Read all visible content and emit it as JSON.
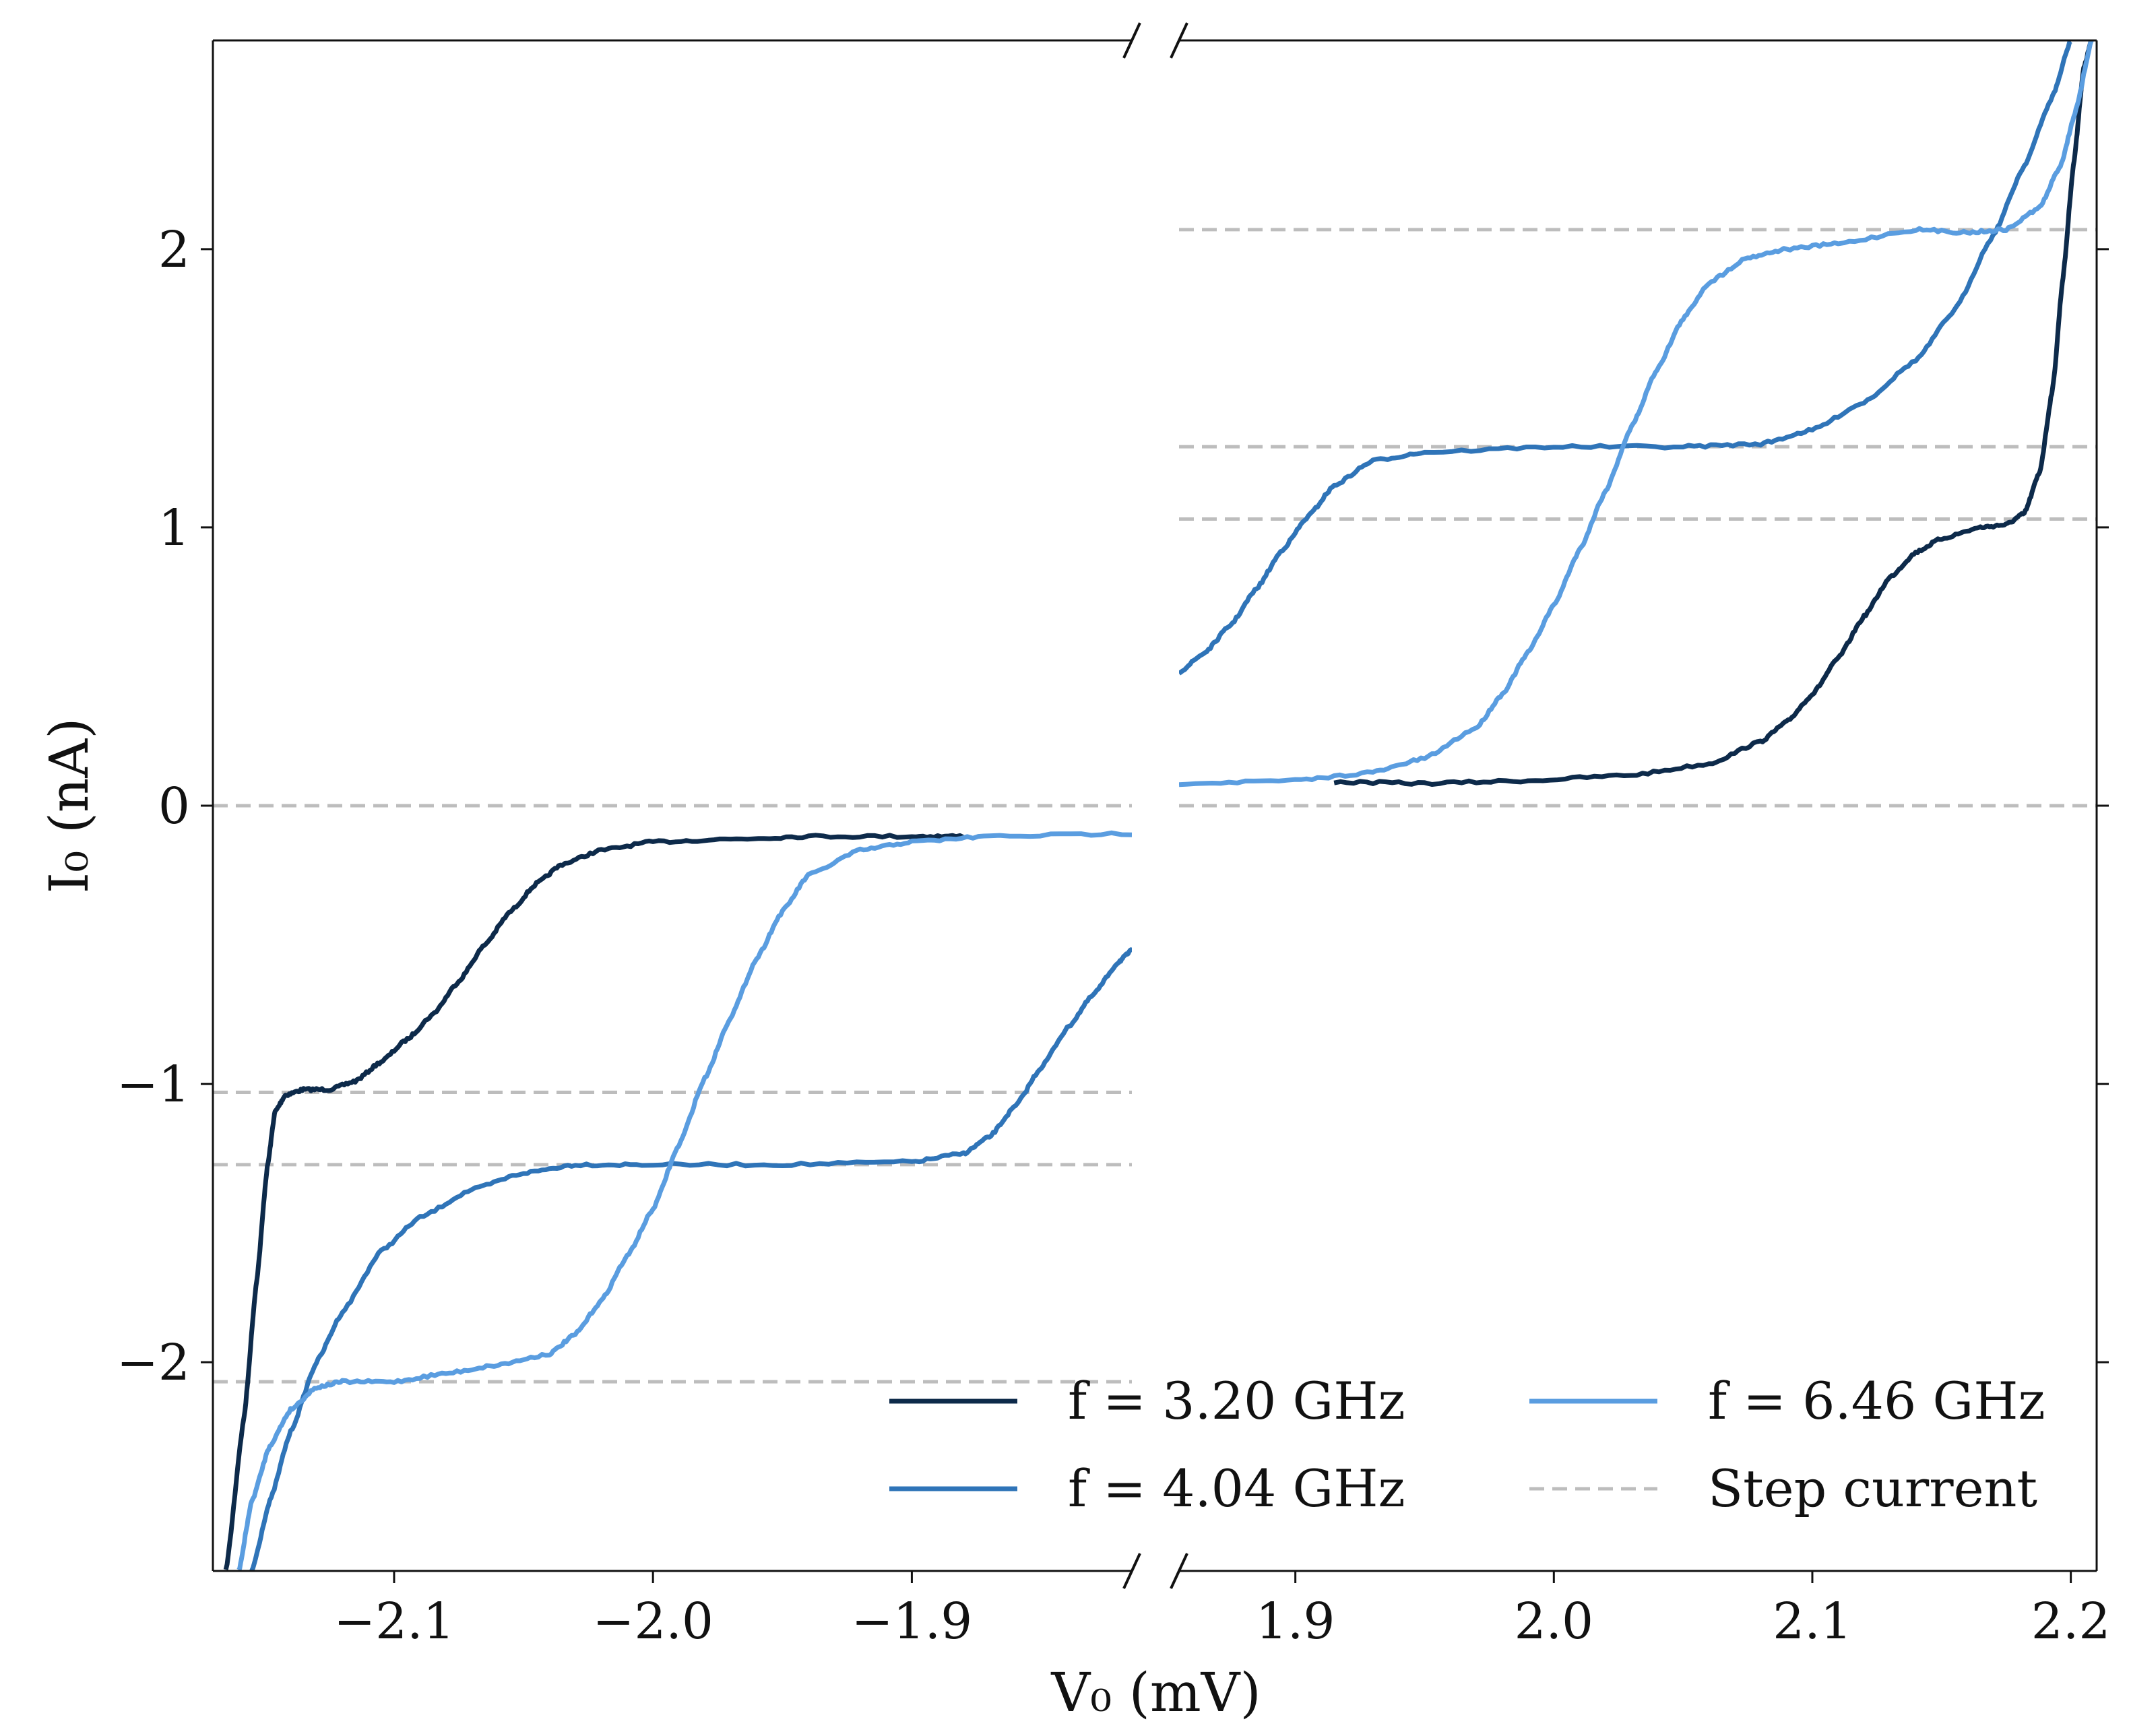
{
  "chart_data": {
    "type": "line",
    "xlabel": "V₀ (mV)",
    "ylabel": "I₀ (nA)",
    "broken_x_axis": true,
    "panels": [
      {
        "xlim": [
          -2.17,
          -1.815
        ],
        "xticks": [
          -2.1,
          -2.0,
          -1.9
        ],
        "xtick_labels": [
          "−2.1",
          "−2.0",
          "−1.9"
        ]
      },
      {
        "xlim": [
          1.855,
          2.21
        ],
        "xticks": [
          1.9,
          2.0,
          2.1,
          2.2
        ],
        "xtick_labels": [
          "1.9",
          "2.0",
          "2.1",
          "2.2"
        ]
      }
    ],
    "ylim": [
      -2.75,
      2.75
    ],
    "yticks": [
      -2,
      -1,
      0,
      1,
      2
    ],
    "ytick_labels": [
      "−2",
      "−1",
      "0",
      "1",
      "2"
    ],
    "step_currents": [
      0,
      1.03,
      1.29,
      2.07,
      -1.03,
      -1.29,
      -2.07
    ],
    "legend_position": "lower-right",
    "series": [
      {
        "name": "f = 3.20 GHz",
        "color": "#0d2a4a",
        "neg": [
          [
            -2.165,
            -2.75
          ],
          [
            -2.158,
            -2.2
          ],
          [
            -2.153,
            -1.7
          ],
          [
            -2.149,
            -1.3
          ],
          [
            -2.146,
            -1.1
          ],
          [
            -2.142,
            -1.04
          ],
          [
            -2.135,
            -1.02
          ],
          [
            -2.125,
            -1.02
          ],
          [
            -2.115,
            -0.99
          ],
          [
            -2.105,
            -0.92
          ],
          [
            -2.095,
            -0.84
          ],
          [
            -2.085,
            -0.75
          ],
          [
            -2.075,
            -0.63
          ],
          [
            -2.065,
            -0.5
          ],
          [
            -2.055,
            -0.38
          ],
          [
            -2.045,
            -0.28
          ],
          [
            -2.035,
            -0.21
          ],
          [
            -2.02,
            -0.16
          ],
          [
            -2.0,
            -0.13
          ],
          [
            -1.97,
            -0.12
          ],
          [
            -1.94,
            -0.11
          ],
          [
            -1.9,
            -0.11
          ],
          [
            -1.88,
            -0.11
          ]
        ],
        "pos": [
          [
            1.915,
            0.085
          ],
          [
            1.95,
            0.08
          ],
          [
            1.99,
            0.09
          ],
          [
            2.03,
            0.11
          ],
          [
            2.06,
            0.15
          ],
          [
            2.08,
            0.23
          ],
          [
            2.09,
            0.3
          ],
          [
            2.1,
            0.4
          ],
          [
            2.11,
            0.53
          ],
          [
            2.12,
            0.68
          ],
          [
            2.13,
            0.82
          ],
          [
            2.14,
            0.91
          ],
          [
            2.15,
            0.96
          ],
          [
            2.165,
            1.0
          ],
          [
            2.175,
            1.01
          ],
          [
            2.182,
            1.05
          ],
          [
            2.188,
            1.2
          ],
          [
            2.193,
            1.5
          ],
          [
            2.197,
            1.9
          ],
          [
            2.201,
            2.3
          ],
          [
            2.205,
            2.65
          ],
          [
            2.208,
            2.75
          ]
        ]
      },
      {
        "name": "f = 4.04 GHz",
        "color": "#2f74b8",
        "neg": [
          [
            -2.155,
            -2.75
          ],
          [
            -2.148,
            -2.5
          ],
          [
            -2.14,
            -2.25
          ],
          [
            -2.13,
            -2.0
          ],
          [
            -2.12,
            -1.82
          ],
          [
            -2.105,
            -1.6
          ],
          [
            -2.09,
            -1.48
          ],
          [
            -2.07,
            -1.38
          ],
          [
            -2.05,
            -1.32
          ],
          [
            -2.03,
            -1.29
          ],
          [
            -2.0,
            -1.29
          ],
          [
            -1.95,
            -1.29
          ],
          [
            -1.9,
            -1.28
          ],
          [
            -1.88,
            -1.25
          ],
          [
            -1.87,
            -1.19
          ],
          [
            -1.86,
            -1.08
          ],
          [
            -1.85,
            -0.94
          ],
          [
            -1.84,
            -0.8
          ],
          [
            -1.83,
            -0.68
          ],
          [
            -1.82,
            -0.56
          ],
          [
            -1.815,
            -0.52
          ]
        ],
        "pos": [
          [
            1.855,
            0.48
          ],
          [
            1.865,
            0.55
          ],
          [
            1.875,
            0.65
          ],
          [
            1.885,
            0.78
          ],
          [
            1.895,
            0.92
          ],
          [
            1.905,
            1.04
          ],
          [
            1.915,
            1.15
          ],
          [
            1.93,
            1.24
          ],
          [
            1.95,
            1.27
          ],
          [
            2.0,
            1.29
          ],
          [
            2.05,
            1.29
          ],
          [
            2.08,
            1.3
          ],
          [
            2.1,
            1.35
          ],
          [
            2.12,
            1.45
          ],
          [
            2.14,
            1.6
          ],
          [
            2.155,
            1.78
          ],
          [
            2.17,
            2.05
          ],
          [
            2.182,
            2.3
          ],
          [
            2.193,
            2.55
          ],
          [
            2.2,
            2.75
          ]
        ]
      },
      {
        "name": "f = 6.46 GHz",
        "color": "#5a9de0",
        "neg": [
          [
            -2.16,
            -2.75
          ],
          [
            -2.155,
            -2.5
          ],
          [
            -2.148,
            -2.3
          ],
          [
            -2.14,
            -2.17
          ],
          [
            -2.13,
            -2.09
          ],
          [
            -2.12,
            -2.07
          ],
          [
            -2.1,
            -2.07
          ],
          [
            -2.08,
            -2.04
          ],
          [
            -2.06,
            -2.01
          ],
          [
            -2.04,
            -1.97
          ],
          [
            -2.03,
            -1.9
          ],
          [
            -2.02,
            -1.78
          ],
          [
            -2.01,
            -1.62
          ],
          [
            -2.0,
            -1.45
          ],
          [
            -1.99,
            -1.22
          ],
          [
            -1.98,
            -0.98
          ],
          [
            -1.97,
            -0.76
          ],
          [
            -1.96,
            -0.55
          ],
          [
            -1.95,
            -0.38
          ],
          [
            -1.94,
            -0.25
          ],
          [
            -1.92,
            -0.16
          ],
          [
            -1.9,
            -0.13
          ],
          [
            -1.87,
            -0.11
          ],
          [
            -1.815,
            -0.1
          ]
        ],
        "pos": [
          [
            1.855,
            0.08
          ],
          [
            1.9,
            0.09
          ],
          [
            1.93,
            0.12
          ],
          [
            1.95,
            0.17
          ],
          [
            1.97,
            0.28
          ],
          [
            1.98,
            0.4
          ],
          [
            1.99,
            0.55
          ],
          [
            2.0,
            0.72
          ],
          [
            2.01,
            0.92
          ],
          [
            2.02,
            1.13
          ],
          [
            2.03,
            1.36
          ],
          [
            2.04,
            1.57
          ],
          [
            2.05,
            1.75
          ],
          [
            2.06,
            1.88
          ],
          [
            2.075,
            1.97
          ],
          [
            2.09,
            2.0
          ],
          [
            2.11,
            2.02
          ],
          [
            2.14,
            2.07
          ],
          [
            2.16,
            2.06
          ],
          [
            2.175,
            2.07
          ],
          [
            2.188,
            2.15
          ],
          [
            2.196,
            2.3
          ],
          [
            2.202,
            2.5
          ],
          [
            2.208,
            2.75
          ]
        ]
      }
    ],
    "legend": [
      {
        "label": "f = 3.20 GHz",
        "color": "#0d2a4a",
        "style": "solid"
      },
      {
        "label": "f = 4.04 GHz",
        "color": "#2f74b8",
        "style": "solid"
      },
      {
        "label": "f = 6.46 GHz",
        "color": "#5a9de0",
        "style": "solid"
      },
      {
        "label": "Step current",
        "color": "#bdbdbd",
        "style": "dashed"
      }
    ]
  }
}
